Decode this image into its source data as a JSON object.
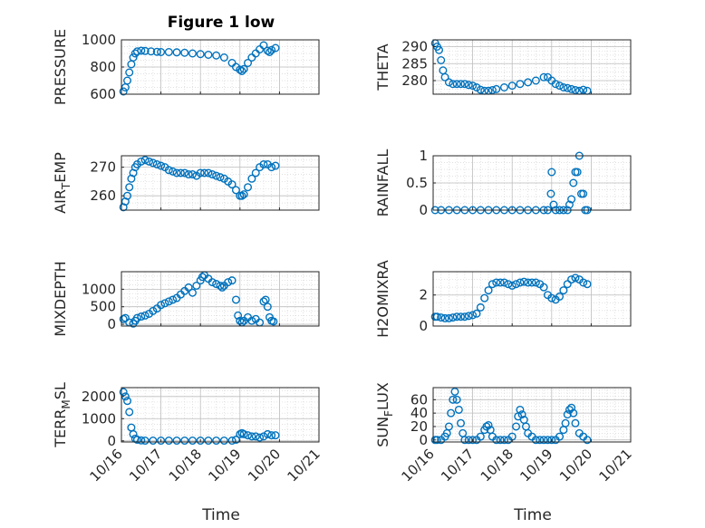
{
  "figure": {
    "title": "Figure 1 low",
    "marker_color": "#0072BD",
    "axis_color": "#262626",
    "grid_color": "#bdbdbd",
    "xticks": [
      16,
      17,
      18,
      19,
      20,
      21
    ],
    "xtick_labels": [
      "10/16",
      "10/17",
      "10/18",
      "10/19",
      "10/20",
      "10/21"
    ],
    "xlim": [
      16,
      21
    ]
  },
  "chart_data": [
    {
      "id": "pressure",
      "type": "scatter",
      "title": "Figure 1 low",
      "ylabel": "PRESSURE",
      "xlabel": "",
      "ylim": [
        600,
        1000
      ],
      "yticks": [
        600,
        800,
        1000
      ],
      "ytick_labels": [
        "600",
        "800",
        "1000"
      ],
      "x": [
        16.05,
        16.1,
        16.15,
        16.2,
        16.25,
        16.3,
        16.35,
        16.4,
        16.5,
        16.6,
        16.75,
        16.9,
        17.0,
        17.2,
        17.4,
        17.6,
        17.8,
        18.0,
        18.2,
        18.4,
        18.6,
        18.8,
        18.9,
        19.0,
        19.05,
        19.1,
        19.2,
        19.3,
        19.4,
        19.5,
        19.6,
        19.7,
        19.75,
        19.8,
        19.9
      ],
      "y": [
        620,
        650,
        700,
        760,
        820,
        870,
        900,
        915,
        920,
        918,
        915,
        912,
        910,
        910,
        908,
        905,
        900,
        895,
        890,
        885,
        870,
        830,
        800,
        780,
        770,
        785,
        830,
        870,
        900,
        930,
        960,
        920,
        910,
        925,
        940
      ]
    },
    {
      "id": "theta",
      "type": "scatter",
      "title": "",
      "ylabel": "THETA",
      "xlabel": "",
      "ylim": [
        276,
        292
      ],
      "yticks": [
        280,
        285,
        290
      ],
      "ytick_labels": [
        "280",
        "285",
        "290"
      ],
      "x": [
        16.05,
        16.1,
        16.15,
        16.2,
        16.25,
        16.3,
        16.4,
        16.5,
        16.6,
        16.7,
        16.8,
        16.9,
        17.0,
        17.1,
        17.2,
        17.3,
        17.4,
        17.5,
        17.6,
        17.8,
        18.0,
        18.2,
        18.4,
        18.6,
        18.8,
        18.9,
        19.0,
        19.1,
        19.2,
        19.3,
        19.4,
        19.5,
        19.6,
        19.7,
        19.8,
        19.9
      ],
      "y": [
        291,
        290,
        289,
        286,
        283,
        281,
        279.5,
        279,
        279,
        279,
        279,
        278.7,
        278.5,
        278,
        277.3,
        277,
        277,
        277.2,
        277.5,
        278,
        278.5,
        279,
        279.5,
        280,
        281,
        281,
        280,
        279,
        278.5,
        278,
        277.8,
        277.5,
        277.2,
        277,
        277.3,
        277
      ]
    },
    {
      "id": "air_temp",
      "type": "scatter",
      "title": "",
      "ylabel": "AIR_TEMP",
      "ylabel_main": "AIR",
      "ylabel_sub": "T",
      "ylabel_rest": "EMP",
      "xlabel": "",
      "ylim": [
        255,
        274
      ],
      "yticks": [
        260,
        270
      ],
      "ytick_labels": [
        "260",
        "270"
      ],
      "x": [
        16.05,
        16.1,
        16.15,
        16.2,
        16.25,
        16.3,
        16.35,
        16.4,
        16.5,
        16.6,
        16.7,
        16.8,
        16.9,
        17.0,
        17.1,
        17.2,
        17.3,
        17.4,
        17.5,
        17.6,
        17.7,
        17.8,
        17.9,
        18.0,
        18.1,
        18.2,
        18.3,
        18.4,
        18.5,
        18.6,
        18.7,
        18.8,
        18.9,
        19.0,
        19.05,
        19.1,
        19.2,
        19.3,
        19.4,
        19.5,
        19.6,
        19.7,
        19.8,
        19.9
      ],
      "y": [
        256,
        258,
        260,
        263,
        266,
        268,
        270,
        271,
        272,
        272.5,
        272,
        271.5,
        271,
        270.5,
        270,
        269,
        268.5,
        268,
        268,
        268,
        267.5,
        267.5,
        267,
        268,
        268,
        268,
        267.5,
        267,
        266.5,
        266,
        265,
        264,
        262,
        260,
        260,
        260.5,
        263,
        266,
        268,
        270,
        271,
        271,
        270,
        270.5
      ]
    },
    {
      "id": "rainfall",
      "type": "scatter",
      "title": "",
      "ylabel": "RAINFALL",
      "xlabel": "",
      "ylim": [
        0,
        1
      ],
      "yticks": [
        0,
        0.5,
        1
      ],
      "ytick_labels": [
        "0",
        "0.5",
        "1"
      ],
      "x": [
        16.05,
        16.2,
        16.4,
        16.6,
        16.8,
        17.0,
        17.2,
        17.4,
        17.6,
        17.8,
        18.0,
        18.2,
        18.4,
        18.6,
        18.8,
        18.9,
        18.98,
        19.0,
        19.05,
        19.1,
        19.2,
        19.3,
        19.4,
        19.45,
        19.5,
        19.55,
        19.6,
        19.65,
        19.7,
        19.75,
        19.8,
        19.85,
        19.9
      ],
      "y": [
        0,
        0,
        0,
        0,
        0,
        0,
        0,
        0,
        0,
        0,
        0,
        0,
        0,
        0,
        0,
        0,
        0.3,
        0.7,
        0.1,
        0,
        0,
        0,
        0,
        0.1,
        0.2,
        0.5,
        0.7,
        0.7,
        1.0,
        0.3,
        0.3,
        0,
        0
      ]
    },
    {
      "id": "mixdepth",
      "type": "scatter",
      "title": "",
      "ylabel": "MIXDEPTH",
      "xlabel": "",
      "ylim": [
        -50,
        1500
      ],
      "yticks": [
        0,
        500,
        1000
      ],
      "ytick_labels": [
        "0",
        "500",
        "1000"
      ],
      "x": [
        16.05,
        16.1,
        16.2,
        16.3,
        16.35,
        16.4,
        16.5,
        16.6,
        16.7,
        16.8,
        16.9,
        17.0,
        17.1,
        17.2,
        17.3,
        17.4,
        17.5,
        17.6,
        17.7,
        17.8,
        17.9,
        18.0,
        18.05,
        18.1,
        18.2,
        18.3,
        18.4,
        18.5,
        18.55,
        18.6,
        18.7,
        18.8,
        18.9,
        18.95,
        19.0,
        19.05,
        19.1,
        19.2,
        19.3,
        19.4,
        19.5,
        19.6,
        19.65,
        19.7,
        19.75,
        19.8,
        19.85
      ],
      "y": [
        150,
        180,
        50,
        20,
        100,
        180,
        220,
        250,
        300,
        380,
        450,
        550,
        600,
        650,
        700,
        750,
        850,
        950,
        1050,
        900,
        1100,
        1250,
        1350,
        1400,
        1300,
        1200,
        1150,
        1100,
        1050,
        1100,
        1200,
        1250,
        700,
        250,
        100,
        50,
        100,
        200,
        100,
        150,
        50,
        650,
        700,
        500,
        200,
        100,
        80
      ]
    },
    {
      "id": "h2omixra",
      "type": "scatter",
      "title": "",
      "ylabel": "H2OMIXRA",
      "xlabel": "",
      "ylim": [
        0,
        3.5
      ],
      "yticks": [
        0,
        2
      ],
      "ytick_labels": [
        "0",
        "2"
      ],
      "x": [
        16.05,
        16.1,
        16.2,
        16.3,
        16.4,
        16.5,
        16.6,
        16.7,
        16.8,
        16.9,
        17.0,
        17.1,
        17.2,
        17.3,
        17.4,
        17.5,
        17.6,
        17.7,
        17.8,
        17.9,
        18.0,
        18.1,
        18.2,
        18.3,
        18.4,
        18.5,
        18.6,
        18.7,
        18.8,
        18.9,
        19.0,
        19.1,
        19.2,
        19.3,
        19.4,
        19.5,
        19.6,
        19.7,
        19.8,
        19.9
      ],
      "y": [
        0.6,
        0.6,
        0.55,
        0.5,
        0.5,
        0.55,
        0.6,
        0.6,
        0.6,
        0.65,
        0.7,
        0.8,
        1.2,
        1.8,
        2.3,
        2.7,
        2.8,
        2.8,
        2.8,
        2.7,
        2.6,
        2.7,
        2.8,
        2.85,
        2.8,
        2.8,
        2.8,
        2.7,
        2.5,
        2.0,
        1.8,
        1.7,
        1.9,
        2.3,
        2.7,
        3.0,
        3.1,
        3.0,
        2.8,
        2.7
      ]
    },
    {
      "id": "terr_msl",
      "type": "scatter",
      "title": "",
      "ylabel": "TERR_MSL",
      "ylabel_main": "TERR",
      "ylabel_sub": "M",
      "ylabel_rest": "SL",
      "xlabel": "Time",
      "ylim": [
        -50,
        2400
      ],
      "yticks": [
        0,
        1000,
        2000
      ],
      "ytick_labels": [
        "0",
        "1000",
        "2000"
      ],
      "x": [
        16.05,
        16.1,
        16.15,
        16.2,
        16.25,
        16.3,
        16.35,
        16.4,
        16.5,
        16.6,
        16.8,
        17.0,
        17.2,
        17.4,
        17.6,
        17.8,
        18.0,
        18.2,
        18.4,
        18.6,
        18.8,
        18.9,
        19.0,
        19.05,
        19.1,
        19.2,
        19.3,
        19.4,
        19.5,
        19.6,
        19.7,
        19.8,
        19.9
      ],
      "y": [
        2200,
        2000,
        1800,
        1300,
        600,
        300,
        100,
        50,
        20,
        10,
        10,
        10,
        10,
        10,
        10,
        10,
        10,
        10,
        10,
        10,
        10,
        50,
        300,
        350,
        300,
        250,
        200,
        200,
        150,
        200,
        300,
        250,
        250
      ]
    },
    {
      "id": "sun_flux",
      "type": "scatter",
      "title": "",
      "ylabel": "SUN_FLUX",
      "ylabel_main": "SUN",
      "ylabel_sub": "F",
      "ylabel_rest": "LUX",
      "xlabel": "Time",
      "ylim": [
        -3,
        78
      ],
      "yticks": [
        0,
        20,
        40,
        60
      ],
      "ytick_labels": [
        "0",
        "20",
        "40",
        "60"
      ],
      "x": [
        16.05,
        16.1,
        16.2,
        16.3,
        16.35,
        16.4,
        16.45,
        16.5,
        16.55,
        16.6,
        16.65,
        16.7,
        16.75,
        16.8,
        16.9,
        17.0,
        17.1,
        17.2,
        17.3,
        17.35,
        17.4,
        17.45,
        17.5,
        17.6,
        17.7,
        17.8,
        17.9,
        18.0,
        18.1,
        18.15,
        18.2,
        18.25,
        18.3,
        18.35,
        18.4,
        18.5,
        18.6,
        18.7,
        18.8,
        18.9,
        19.0,
        19.1,
        19.2,
        19.3,
        19.35,
        19.4,
        19.45,
        19.5,
        19.55,
        19.6,
        19.7,
        19.8,
        19.9
      ],
      "y": [
        0,
        0,
        0,
        5,
        10,
        20,
        40,
        60,
        72,
        60,
        45,
        25,
        10,
        0,
        0,
        0,
        0,
        5,
        15,
        20,
        22,
        15,
        5,
        0,
        0,
        0,
        0,
        5,
        20,
        35,
        45,
        38,
        30,
        20,
        10,
        5,
        0,
        0,
        0,
        0,
        0,
        0,
        5,
        15,
        25,
        38,
        45,
        48,
        40,
        25,
        10,
        5,
        0
      ]
    }
  ]
}
